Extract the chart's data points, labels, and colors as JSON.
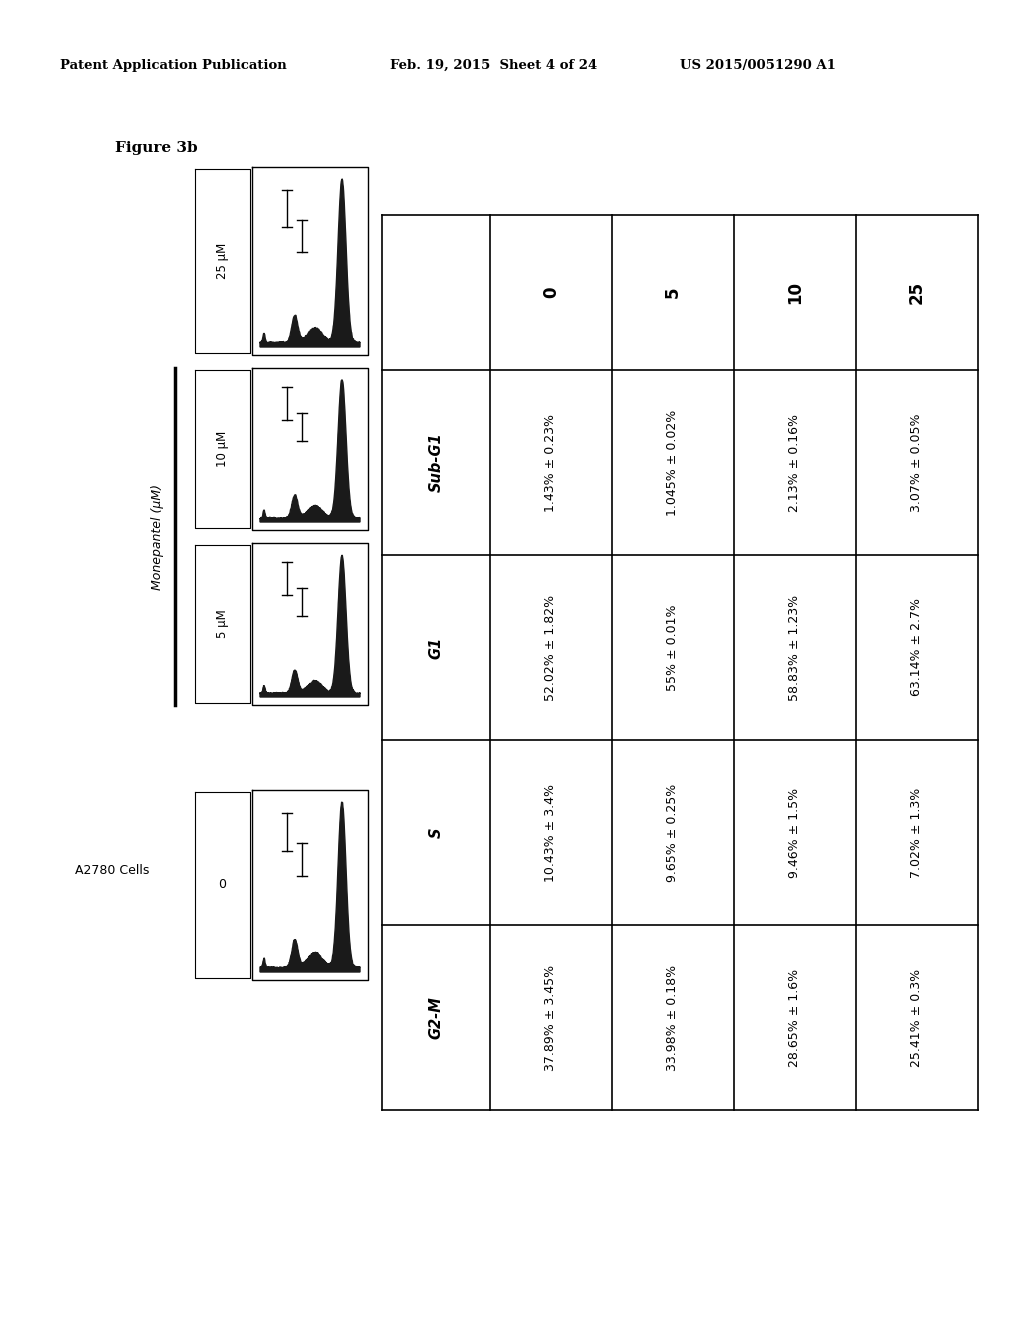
{
  "header_left": "Patent Application Publication",
  "header_center": "Feb. 19, 2015  Sheet 4 of 24",
  "header_right": "US 2015/0051290 A1",
  "figure_label": "Figure 3b",
  "cell_line": "A2780 Cells",
  "drug_label": "Monepantel (μM)",
  "table_col_headers": [
    "",
    "0",
    "5",
    "10",
    "25"
  ],
  "table_row_headers": [
    "Sub-G1",
    "G1",
    "S",
    "G2-M"
  ],
  "table_data": [
    [
      "1.43% ± 0.23%",
      "1.045% ± 0.02%",
      "2.13% ± 0.16%",
      "3.07% ± 0.05%"
    ],
    [
      "52.02% ± 1.82%",
      "55% ± 0.01%",
      "58.83% ± 1.23%",
      "63.14% ± 2.7%"
    ],
    [
      "10.43% ± 3.4%",
      "9.65% ± 0.25%",
      "9.46% ± 1.5%",
      "7.02% ± 1.3%"
    ],
    [
      "37.89% ± 3.45%",
      "33.98% ± 0.18%",
      "28.65% ± 1.6%",
      "25.41% ± 0.3%"
    ]
  ],
  "background_color": "#ffffff",
  "text_color": "#000000"
}
